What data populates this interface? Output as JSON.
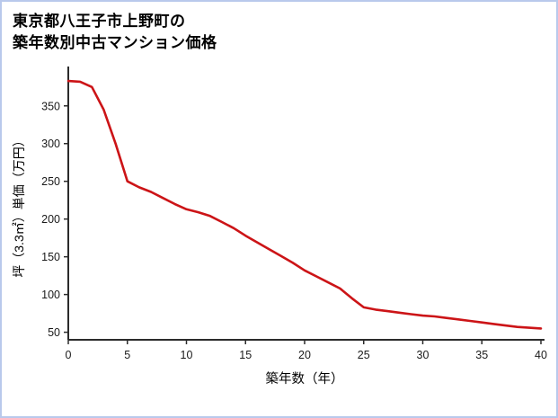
{
  "page": {
    "background": "#ffffff",
    "border_color": "#b9c9ec"
  },
  "title": {
    "line1": "東京都八王子市上野町の",
    "line2": "築年数別中古マンション価格"
  },
  "chart_data": {
    "type": "line",
    "title": "東京都八王子市上野町の築年数別中古マンション価格",
    "xlabel": "築年数（年）",
    "ylabel": "坪（3.3㎡）単価（万円）",
    "x": [
      0,
      1,
      2,
      3,
      4,
      5,
      6,
      7,
      8,
      9,
      10,
      11,
      12,
      13,
      14,
      15,
      16,
      17,
      18,
      19,
      20,
      21,
      22,
      23,
      24,
      25,
      26,
      27,
      28,
      29,
      30,
      31,
      32,
      33,
      34,
      35,
      36,
      37,
      38,
      39,
      40
    ],
    "values": [
      383,
      382,
      375,
      345,
      300,
      250,
      242,
      236,
      228,
      220,
      213,
      209,
      204,
      196,
      188,
      178,
      169,
      160,
      151,
      142,
      132,
      124,
      116,
      108,
      95,
      83,
      80,
      78,
      76,
      74,
      72,
      71,
      69,
      67,
      65,
      63,
      61,
      59,
      57,
      56,
      55
    ],
    "xlim": [
      0,
      40
    ],
    "ylim": [
      40,
      395
    ],
    "x_ticks": [
      0,
      5,
      10,
      15,
      20,
      25,
      30,
      35,
      40
    ],
    "y_ticks": [
      50,
      100,
      150,
      200,
      250,
      300,
      350
    ],
    "grid": false,
    "legend_position": "none",
    "line_color": "#cc1417",
    "axis_color": "#2b2b2b",
    "tick_label_color": "#1a1a1a"
  }
}
